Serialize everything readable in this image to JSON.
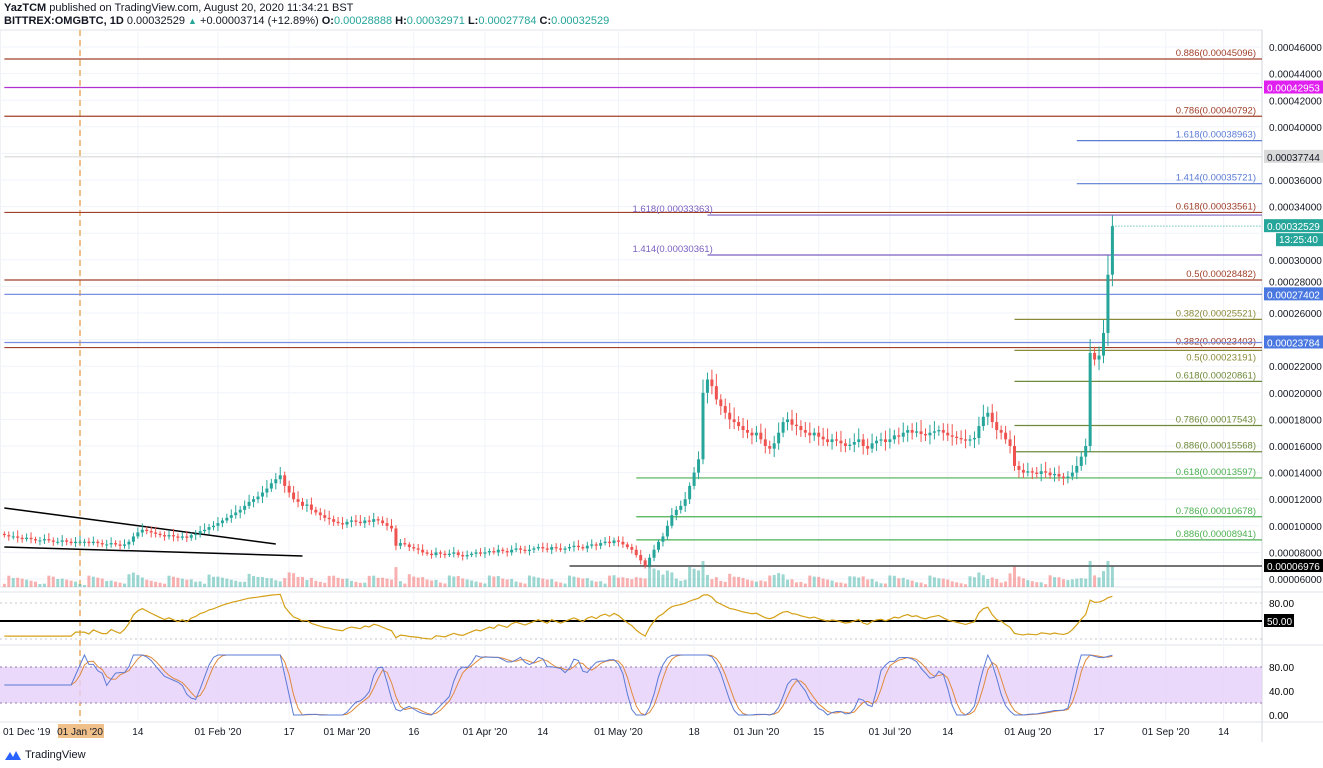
{
  "header": {
    "publisher": "YazTCM",
    "published_text": "published on TradingView.com, August 20, 2020 11:34:21 BST",
    "symbol": "BITTREX:OMGBTC, 1D",
    "last": "0.00032529",
    "change": "+0.00003714 (+12.89%)",
    "o_label": "O:",
    "o": "0.00028888",
    "h_label": "H:",
    "h": "0.00032971",
    "l_label": "L:",
    "l": "0.00027784",
    "c_label": "C:",
    "c": "0.00032529"
  },
  "footer": {
    "brand": "TradingView",
    "logo_icon": "tradingview-logo-icon"
  },
  "colors": {
    "up": "#26a69a",
    "down": "#ef5350",
    "rsi": "#d4a017",
    "stoch_k": "#5b7bd5",
    "stoch_d": "#e08a3c",
    "stoch_band": "#e6d0fb",
    "jan_marker": "#f0c08a"
  },
  "chart_data": {
    "type": "candlestick",
    "symbol": "OMGBTC",
    "interval": "1D",
    "start_date": "2019-12-15",
    "closes": [
      9.3e-05,
      9.2e-05,
      9.2e-05,
      9.1e-05,
      9e-05,
      9.1e-05,
      9e-05,
      8.9e-05,
      8.9e-05,
      9e-05,
      8.9e-05,
      8.8e-05,
      8.8e-05,
      8.9e-05,
      8.8e-05,
      8.7e-05,
      8.8e-05,
      8.8e-05,
      8.8e-05,
      8.7e-05,
      8.8e-05,
      8.7e-05,
      8.6e-05,
      8.6e-05,
      8.7e-05,
      8.6e-05,
      8.5e-05,
      8.6e-05,
      8.8e-05,
      9.2e-05,
      9.5e-05,
      9.7e-05,
      9.6e-05,
      9.5e-05,
      9.4e-05,
      9.3e-05,
      9.2e-05,
      9.3e-05,
      9.2e-05,
      9.1e-05,
      9.2e-05,
      9.1e-05,
      9.3e-05,
      9.4e-05,
      9.6e-05,
      9.7e-05,
      9.9e-05,
      0.0001,
      0.000102,
      0.000104,
      0.000106,
      0.000108,
      0.00011,
      0.000112,
      0.000115,
      0.000118,
      0.00012,
      0.000122,
      0.000125,
      0.000128,
      0.000132,
      0.000135,
      0.000138,
      0.00013,
      0.000125,
      0.00012,
      0.000118,
      0.000115,
      0.000116,
      0.000112,
      0.00011,
      0.000108,
      0.000106,
      0.000105,
      0.000103,
      0.000102,
      0.000101,
      0.000103,
      0.000104,
      0.000103,
      0.000102,
      0.000104,
      0.000103,
      0.000105,
      0.000104,
      0.000102,
      0.0001,
      9.8e-05,
      8.5e-05,
      8.7e-05,
      8.6e-05,
      8.4e-05,
      8.3e-05,
      8.2e-05,
      8e-05,
      7.9e-05,
      7.8e-05,
      8e-05,
      7.9e-05,
      7.8e-05,
      7.9e-05,
      8e-05,
      7.8e-05,
      7.7e-05,
      7.8e-05,
      7.9e-05,
      8e-05,
      7.9e-05,
      8e-05,
      8.1e-05,
      8e-05,
      8.2e-05,
      8.1e-05,
      8e-05,
      8.2e-05,
      8.3e-05,
      8.2e-05,
      8.1e-05,
      8.2e-05,
      8.3e-05,
      8.4e-05,
      8.3e-05,
      8.2e-05,
      8.4e-05,
      8.3e-05,
      8.2e-05,
      8.3e-05,
      8.4e-05,
      8.5e-05,
      8.4e-05,
      8.3e-05,
      8.5e-05,
      8.6e-05,
      8.5e-05,
      8.7e-05,
      8.8e-05,
      8.7e-05,
      8.9e-05,
      8.8e-05,
      8.6e-05,
      8.4e-05,
      8.2e-05,
      7.8e-05,
      7.4e-05,
      7e-05,
      7.6e-05,
      8.2e-05,
      8.8e-05,
      9.2e-05,
      0.0001,
      0.000108,
      0.000112,
      0.000115,
      0.00012,
      0.00013,
      0.00014,
      0.00015,
      0.0002,
      0.00021,
      0.000205,
      0.000195,
      0.00019,
      0.000185,
      0.00018,
      0.000178,
      0.000175,
      0.000172,
      0.00017,
      0.000168,
      0.00017,
      0.000165,
      0.00016,
      0.000158,
      0.000162,
      0.00017,
      0.000178,
      0.00018,
      0.000176,
      0.000175,
      0.000172,
      0.00017,
      0.000168,
      0.00017,
      0.000167,
      0.000165,
      0.000163,
      0.000165,
      0.000164,
      0.000162,
      0.00016,
      0.000161,
      0.000163,
      0.000165,
      0.00016,
      0.000158,
      0.000162,
      0.000164,
      0.000165,
      0.000163,
      0.000165,
      0.000168,
      0.000167,
      0.00017,
      0.000172,
      0.00017,
      0.000171,
      0.000169,
      0.000168,
      0.00017,
      0.000171,
      0.000172,
      0.00017,
      0.000168,
      0.000167,
      0.000166,
      0.000165,
      0.000164,
      0.000165,
      0.000166,
      0.000175,
      0.000182,
      0.000185,
      0.000178,
      0.000172,
      0.00017,
      0.000165,
      0.00016,
      0.000145,
      0.000142,
      0.00014,
      0.000141,
      0.00014,
      0.000139,
      0.000141,
      0.00014,
      0.000138,
      0.000139,
      0.000137,
      0.000136,
      0.000137,
      0.00014,
      0.000145,
      0.000152,
      0.00016,
      0.00023,
      0.000225,
      0.000228,
      0.000245,
      0.0002888,
      0.00032529
    ],
    "price_axis": {
      "min": 6e-05,
      "max": 0.00046,
      "ticks": [
        "0.00046000",
        "0.00044000",
        "0.00042000",
        "0.00040000",
        "0.00036000",
        "0.00034000",
        "0.00030000",
        "0.00028000",
        "0.00026000",
        "0.00022000",
        "0.00020000",
        "0.00018000",
        "0.00016000",
        "0.00014000",
        "0.00012000",
        "0.00010000",
        "0.00008000",
        "0.00006000"
      ]
    },
    "time_axis": {
      "ticks": [
        {
          "date": "2019-12-01",
          "label": "01 Dec '19"
        },
        {
          "date": "2020-01-01",
          "label": "01 Jan '20",
          "highlight": true
        },
        {
          "date": "2020-01-14",
          "label": "14"
        },
        {
          "date": "2020-02-01",
          "label": "01 Feb '20"
        },
        {
          "date": "2020-02-17",
          "label": "17"
        },
        {
          "date": "2020-03-01",
          "label": "01 Mar '20"
        },
        {
          "date": "2020-03-16",
          "label": "16"
        },
        {
          "date": "2020-04-01",
          "label": "01 Apr '20"
        },
        {
          "date": "2020-04-14",
          "label": "14"
        },
        {
          "date": "2020-05-01",
          "label": "01 May '20"
        },
        {
          "date": "2020-05-18",
          "label": "18"
        },
        {
          "date": "2020-06-01",
          "label": "01 Jun '20"
        },
        {
          "date": "2020-06-15",
          "label": "15"
        },
        {
          "date": "2020-07-01",
          "label": "01 Jul '20"
        },
        {
          "date": "2020-07-14",
          "label": "14"
        },
        {
          "date": "2020-08-01",
          "label": "01 Aug '20"
        },
        {
          "date": "2020-08-17",
          "label": "17"
        },
        {
          "date": "2020-09-01",
          "label": "01 Sep '20"
        },
        {
          "date": "2020-09-14",
          "label": "14"
        }
      ]
    },
    "levels": [
      {
        "label": "0.886(0.00045096)",
        "value": 0.00045096,
        "color": "#a0402a",
        "from": "2019-12-15"
      },
      {
        "label": "",
        "value": 0.00042953,
        "color": "#b030d0",
        "from": "2019-12-15",
        "tag": "0.00042953",
        "tag_color": "#e020f0"
      },
      {
        "label": "0.786(0.00040792)",
        "value": 0.00040792,
        "color": "#a0402a",
        "from": "2019-12-15"
      },
      {
        "label": "1.618(0.00038963)",
        "value": 0.00038963,
        "color": "#5b7bd5",
        "from": "2020-08-12"
      },
      {
        "label": "",
        "value": 0.00037744,
        "color": "#d8d8d8",
        "from": "2019-12-15",
        "tag": "0.00037744",
        "tag_color": "#d9d9d9",
        "tag_text": "#131722"
      },
      {
        "label": "1.414(0.00035721)",
        "value": 0.00035721,
        "color": "#5b7bd5",
        "from": "2020-08-12"
      },
      {
        "label": "0.618(0.00033561)",
        "value": 0.00033561,
        "color": "#a0402a",
        "from": "2019-12-15"
      },
      {
        "label": "1.618(0.00033363)",
        "value": 0.00033363,
        "color": "#7a5fc0",
        "from": "2020-05-21",
        "label_left": true
      },
      {
        "label": "1.414(0.00030361)",
        "value": 0.00030361,
        "color": "#7a5fc0",
        "from": "2020-05-21",
        "label_left": true
      },
      {
        "label": "0.5(0.00028482)",
        "value": 0.00028482,
        "color": "#a0402a",
        "from": "2019-12-15"
      },
      {
        "label": "",
        "value": 0.00027402,
        "color": "#7b8fe0",
        "from": "2019-12-15",
        "tag": "0.00027402",
        "tag_color": "#4a78e0"
      },
      {
        "label": "0.382(0.00025521)",
        "value": 0.00025521,
        "color": "#8a8a3a",
        "from": "2020-07-29"
      },
      {
        "label": "0.382(0.00023403)",
        "value": 0.00023403,
        "color": "#a0402a",
        "from": "2019-12-15"
      },
      {
        "label": "",
        "value": 0.00023784,
        "color": "#7b8fe0",
        "from": "2019-12-15",
        "tag": "0.00023784",
        "tag_color": "#4a78e0"
      },
      {
        "label": "0.5(0.00023191)",
        "value": 0.00023191,
        "color": "#8a8a3a",
        "from": "2020-07-29"
      },
      {
        "label": "0.618(0.00020861)",
        "value": 0.00020861,
        "color": "#6f8a3a",
        "from": "2020-07-29"
      },
      {
        "label": "0.786(0.00017543)",
        "value": 0.00017543,
        "color": "#6f8a3a",
        "from": "2020-07-29"
      },
      {
        "label": "0.886(0.00015568)",
        "value": 0.00015568,
        "color": "#6f8a3a",
        "from": "2020-07-29"
      },
      {
        "label": "0.618(0.00013597)",
        "value": 0.00013597,
        "color": "#4caf50",
        "from": "2020-05-05"
      },
      {
        "label": "0.786(0.00010678)",
        "value": 0.00010678,
        "color": "#4caf50",
        "from": "2020-05-05"
      },
      {
        "label": "0.886(0.00008941)",
        "value": 8.941e-05,
        "color": "#4caf50",
        "from": "2020-05-05"
      },
      {
        "label": "",
        "value": 6.976e-05,
        "color": "#222222",
        "from": "2020-04-20",
        "tag": "0.00006976",
        "tag_color": "#000000"
      }
    ],
    "last_price_tag": {
      "value": "0.00032529",
      "countdown": "13:25:40",
      "color": "#26a69a"
    },
    "trendlines": [
      {
        "from": [
          "2019-12-15",
          0.0001134
        ],
        "to": [
          "2020-02-14",
          8.63e-05
        ]
      },
      {
        "from": [
          "2019-12-15",
          8.41e-05
        ],
        "to": [
          "2020-02-20",
          7.73e-05
        ]
      }
    ],
    "vertical_marker": {
      "date": "2020-01-01",
      "style": "dashed"
    },
    "rsi": {
      "period": 14,
      "levels": [
        80,
        50,
        20
      ],
      "tick_labels": [
        "80.00",
        "50.00"
      ]
    },
    "stoch_rsi": {
      "levels": [
        80,
        20
      ],
      "tick_labels": [
        "80.00",
        "40.00",
        "0.00"
      ]
    }
  }
}
